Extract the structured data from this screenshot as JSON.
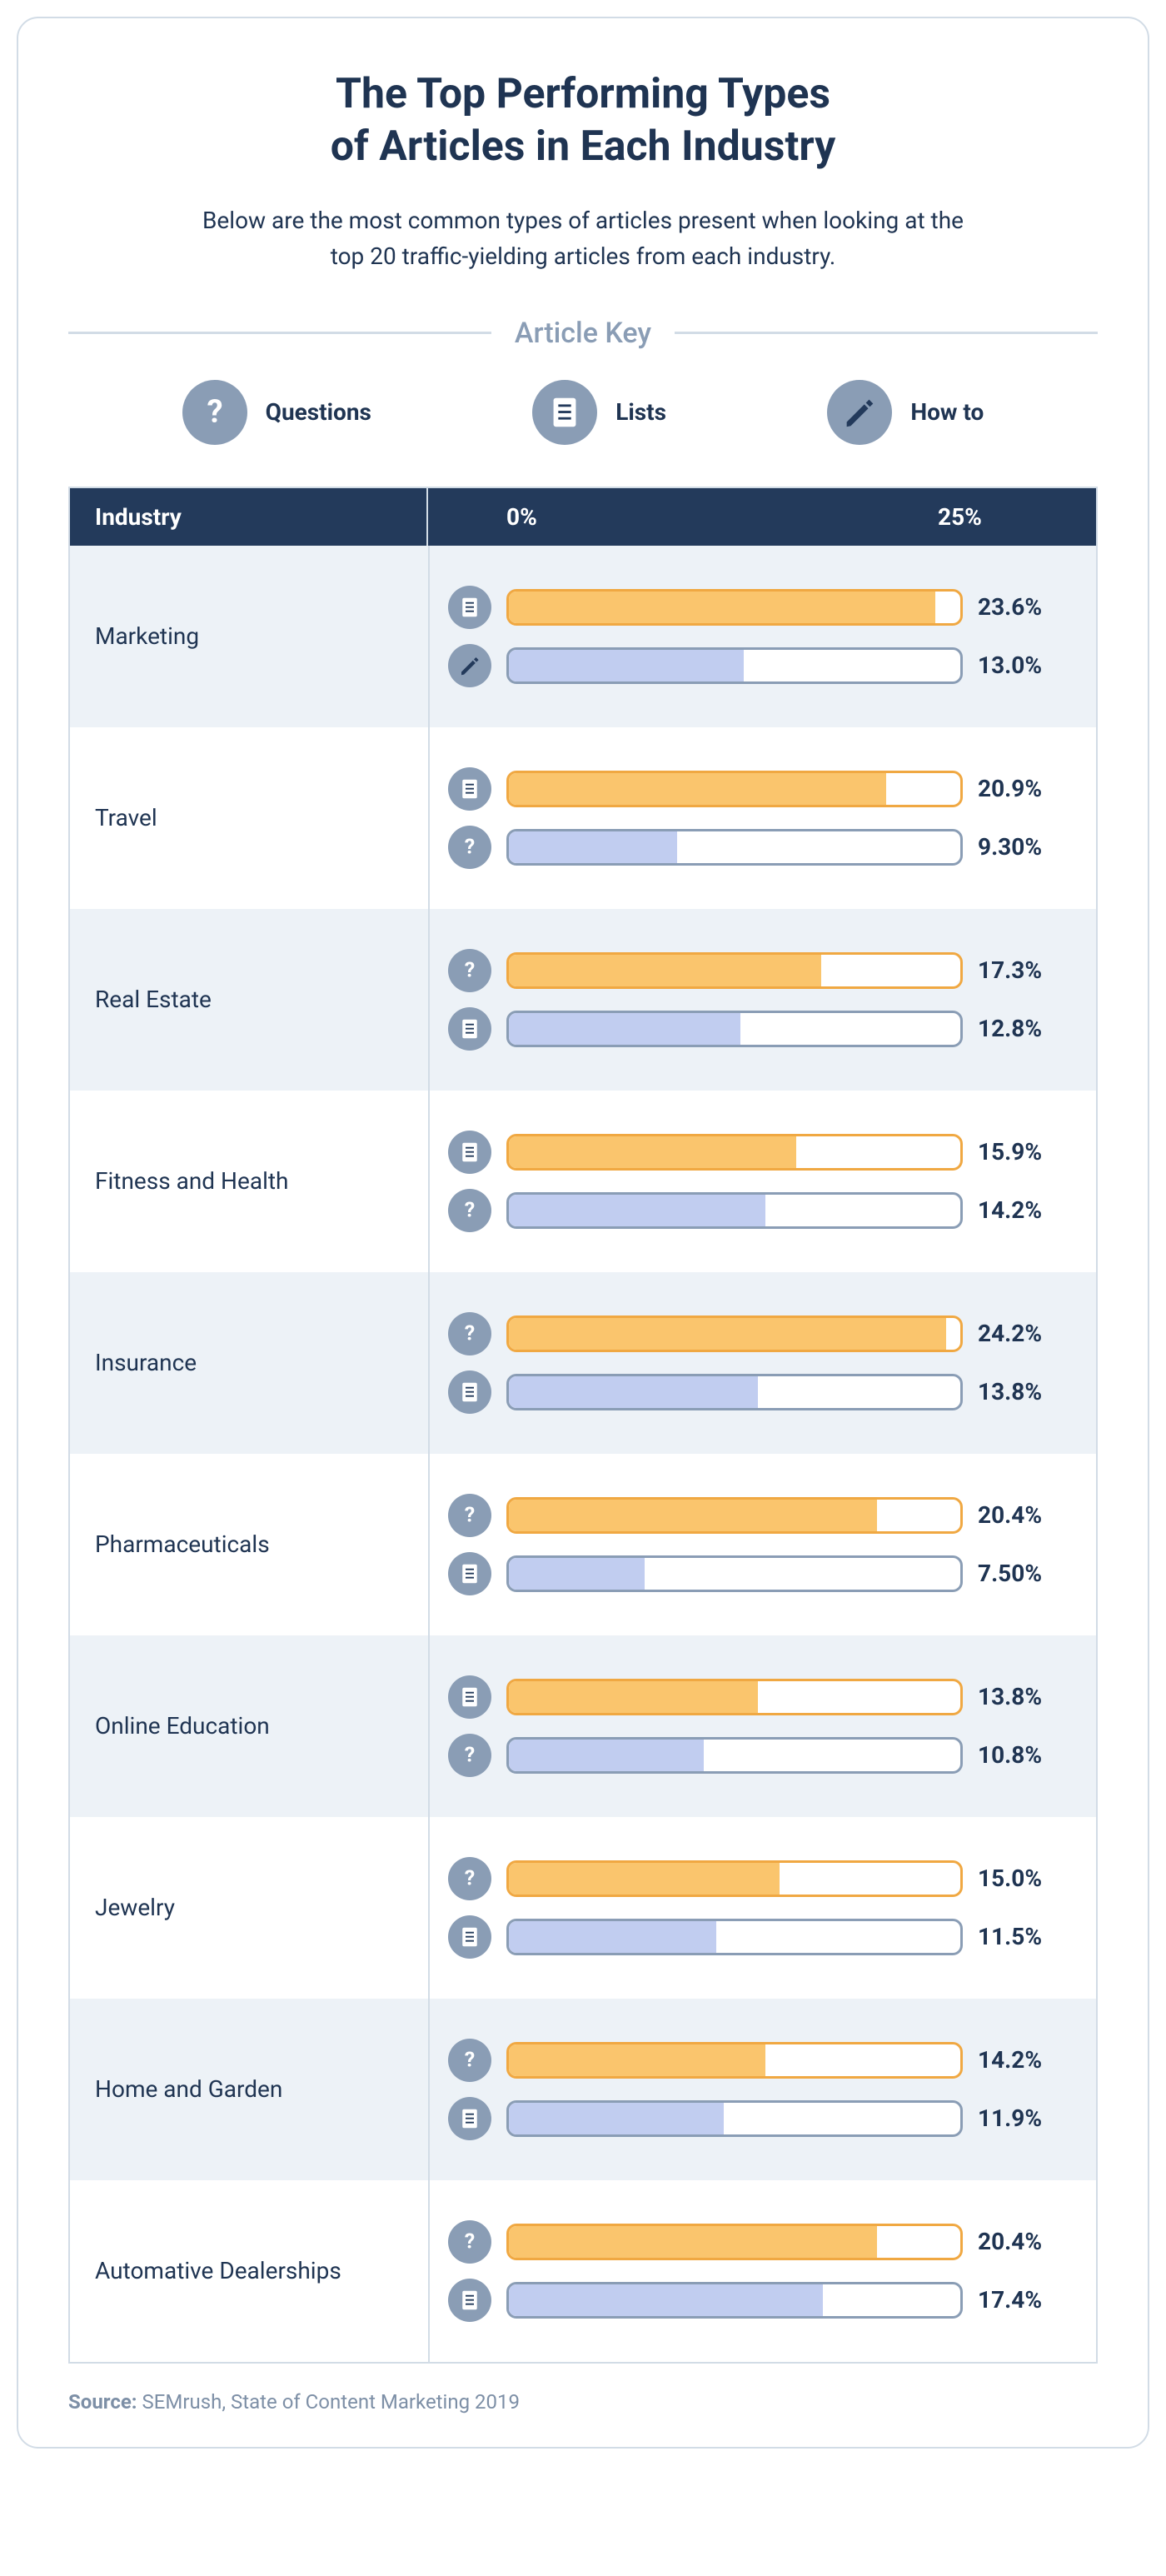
{
  "title_line1": "The Top Performing Types",
  "title_line2": "of Articles in Each Industry",
  "subtitle_line1": "Below are the most common types of articles present when looking at the",
  "subtitle_line2": "top 20 traffic-yielding articles from each industry.",
  "key": {
    "label": "Article Key",
    "items": [
      {
        "type": "questions",
        "label": "Questions"
      },
      {
        "type": "lists",
        "label": "Lists"
      },
      {
        "type": "howto",
        "label": "How to"
      }
    ]
  },
  "table": {
    "header_label": "Industry",
    "axis_min_label": "0%",
    "axis_max_label": "25%",
    "axis_max": 25
  },
  "styling": {
    "title_fontsize": 50,
    "subtitle_fontsize": 28,
    "key_label_fontsize": 34,
    "key_item_label_fontsize": 28,
    "header_fontsize": 28,
    "industry_fontsize": 28,
    "value_fontsize": 28,
    "source_fontsize": 24,
    "header_bg": "#233a5b",
    "row_alt_bg": "#edf2f7",
    "row_bg": "#ffffff",
    "icon_circle_bg": "#8a9db5",
    "icon_fill": "#ffffff",
    "icon_fill_dark": "#233a5b",
    "primary_border": "#f0a842",
    "primary_fill": "#fac56d",
    "secondary_border": "#8a9db5",
    "secondary_fill": "#c1cdf0",
    "bar_track_width": 548
  },
  "industries": [
    {
      "name": "Marketing",
      "bars": [
        {
          "icon": "lists",
          "value": 23.6,
          "display": "23.6%",
          "style": "primary"
        },
        {
          "icon": "howto",
          "value": 13.0,
          "display": "13.0%",
          "style": "secondary"
        }
      ]
    },
    {
      "name": "Travel",
      "bars": [
        {
          "icon": "lists",
          "value": 20.9,
          "display": "20.9%",
          "style": "primary"
        },
        {
          "icon": "questions",
          "value": 9.3,
          "display": "9.30%",
          "style": "secondary"
        }
      ]
    },
    {
      "name": "Real Estate",
      "bars": [
        {
          "icon": "questions",
          "value": 17.3,
          "display": "17.3%",
          "style": "primary"
        },
        {
          "icon": "lists",
          "value": 12.8,
          "display": "12.8%",
          "style": "secondary"
        }
      ]
    },
    {
      "name": "Fitness and Health",
      "bars": [
        {
          "icon": "lists",
          "value": 15.9,
          "display": "15.9%",
          "style": "primary"
        },
        {
          "icon": "questions",
          "value": 14.2,
          "display": "14.2%",
          "style": "secondary"
        }
      ]
    },
    {
      "name": "Insurance",
      "bars": [
        {
          "icon": "questions",
          "value": 24.2,
          "display": "24.2%",
          "style": "primary"
        },
        {
          "icon": "lists",
          "value": 13.8,
          "display": "13.8%",
          "style": "secondary"
        }
      ]
    },
    {
      "name": "Pharmaceuticals",
      "bars": [
        {
          "icon": "questions",
          "value": 20.4,
          "display": "20.4%",
          "style": "primary"
        },
        {
          "icon": "lists",
          "value": 7.5,
          "display": "7.50%",
          "style": "secondary"
        }
      ]
    },
    {
      "name": "Online Education",
      "bars": [
        {
          "icon": "lists",
          "value": 13.8,
          "display": "13.8%",
          "style": "primary"
        },
        {
          "icon": "questions",
          "value": 10.8,
          "display": "10.8%",
          "style": "secondary"
        }
      ]
    },
    {
      "name": "Jewelry",
      "bars": [
        {
          "icon": "questions",
          "value": 15.0,
          "display": "15.0%",
          "style": "primary"
        },
        {
          "icon": "lists",
          "value": 11.5,
          "display": "11.5%",
          "style": "secondary"
        }
      ]
    },
    {
      "name": "Home and Garden",
      "bars": [
        {
          "icon": "questions",
          "value": 14.2,
          "display": "14.2%",
          "style": "primary"
        },
        {
          "icon": "lists",
          "value": 11.9,
          "display": "11.9%",
          "style": "secondary"
        }
      ]
    },
    {
      "name": "Automative Dealerships",
      "bars": [
        {
          "icon": "questions",
          "value": 20.4,
          "display": "20.4%",
          "style": "primary"
        },
        {
          "icon": "lists",
          "value": 17.4,
          "display": "17.4%",
          "style": "secondary"
        }
      ]
    }
  ],
  "source": {
    "label": "Source:",
    "text": "SEMrush, State of Content Marketing 2019"
  }
}
